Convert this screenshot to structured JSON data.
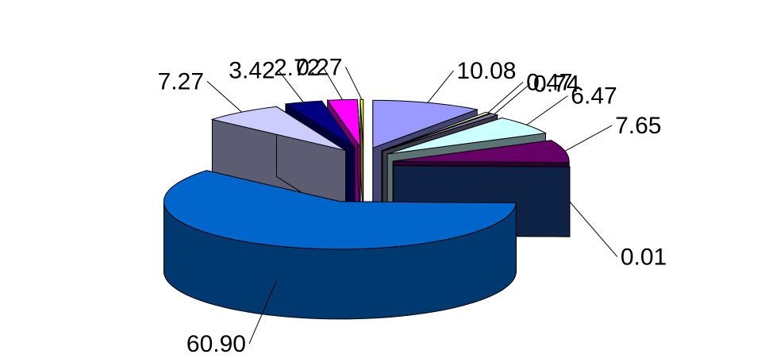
{
  "chart_data": {
    "type": "pie",
    "three_d": true,
    "exploded": true,
    "legend": "none",
    "labels_shown": "values",
    "slices": [
      {
        "value": 10.08,
        "label": "10.08",
        "color": "#9999ff"
      },
      {
        "value": 0.47,
        "label": "0.47",
        "color": "#ffffcc"
      },
      {
        "value": 0.74,
        "label": "0.74",
        "color": "#8080a0"
      },
      {
        "value": 6.47,
        "label": "6.47",
        "color": "#ccffff"
      },
      {
        "value": 7.65,
        "label": "7.65",
        "color": "#660066"
      },
      {
        "value": 0.01,
        "label": "0.01",
        "color": "#1f4e9a"
      },
      {
        "value": 60.9,
        "label": "60.90",
        "color": "#0066cc"
      },
      {
        "value": 7.27,
        "label": "7.27",
        "color": "#ccccff"
      },
      {
        "value": 3.42,
        "label": "3.42",
        "color": "#000080"
      },
      {
        "value": 2.72,
        "label": "2.72",
        "color": "#ff00ff"
      },
      {
        "value": 0.27,
        "label": "0.27",
        "color": "#ffff00"
      }
    ]
  }
}
